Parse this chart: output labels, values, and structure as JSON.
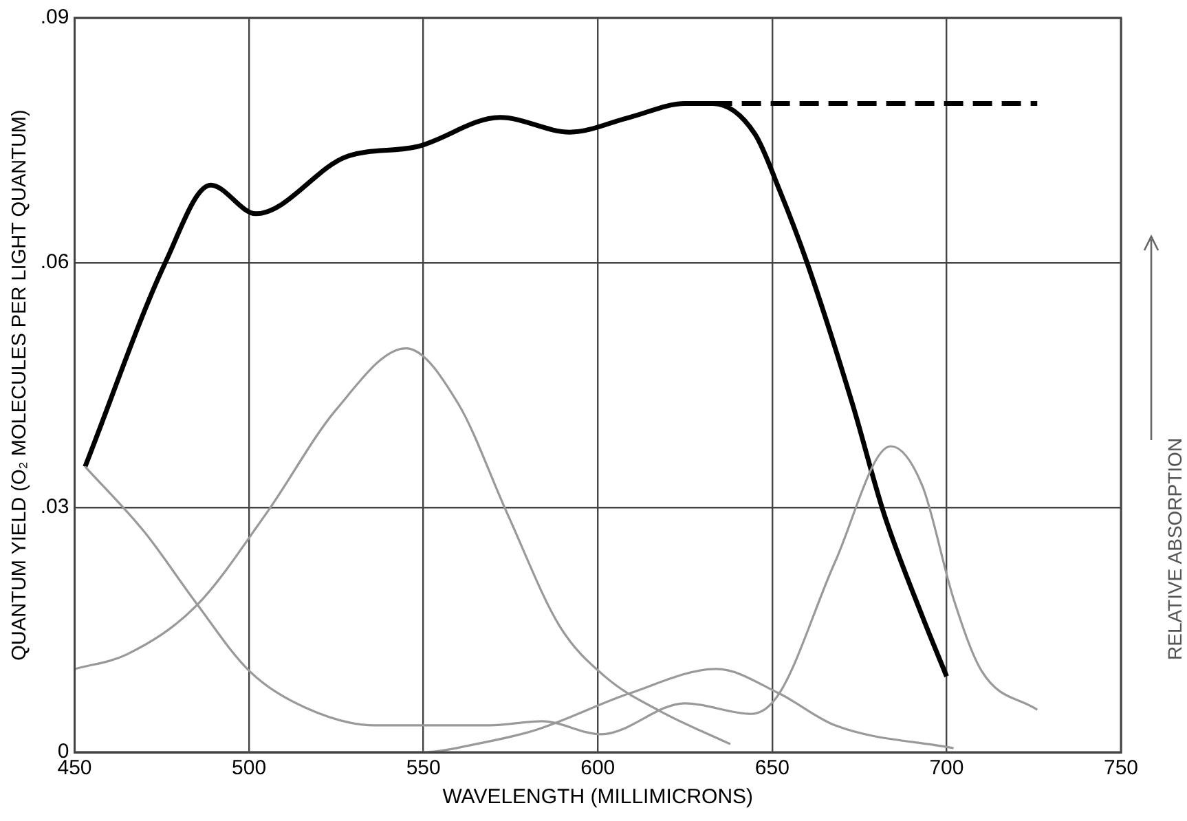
{
  "chart_data": {
    "type": "line",
    "xlabel": "WAVELENGTH (MILLIMICRONS)",
    "ylabel": "QUANTUM YIELD (O₂ MOLECULES PER LIGHT QUANTUM)",
    "y2label": "RELATIVE ABSORPTION",
    "xlim": [
      450,
      750
    ],
    "xticks": [
      450,
      500,
      550,
      600,
      650,
      700,
      750
    ],
    "ylim": [
      0,
      0.09
    ],
    "yticks": [
      {
        "value": 0,
        "label": "0"
      },
      {
        "value": 0.03,
        "label": ".03"
      },
      {
        "value": 0.06,
        "label": ".06"
      },
      {
        "value": 0.09,
        "label": ".09"
      }
    ],
    "grid": true,
    "legend": false,
    "marker": "none",
    "series": [
      {
        "color": "#999999",
        "x": [
          450,
          465,
          485,
          505,
          525,
          545,
          560,
          574,
          589,
          602,
          618,
          638
        ],
        "values": [
          0.0102,
          0.012,
          0.018,
          0.0293,
          0.042,
          0.0495,
          0.0427,
          0.0293,
          0.0155,
          0.0093,
          0.005,
          0.001
        ]
      },
      {
        "color": "#999999",
        "x": [
          453,
          470,
          485,
          500,
          516,
          536,
          569,
          584,
          601,
          625,
          644,
          652,
          668,
          684,
          693,
          702,
          710,
          726
        ],
        "values": [
          0.035,
          0.027,
          0.0182,
          0.01,
          0.0055,
          0.0033,
          0.0033,
          0.0038,
          0.0022,
          0.006,
          0.0047,
          0.0072,
          0.0233,
          0.0375,
          0.0327,
          0.0188,
          0.01,
          0.0052
        ]
      },
      {
        "color": "#999999",
        "x": [
          450,
          500,
          550,
          565,
          582,
          609,
          634,
          652,
          668,
          702
        ],
        "values": [
          0,
          0,
          0,
          0.001,
          0.0027,
          0.0072,
          0.0102,
          0.0072,
          0.0033,
          0.0005
        ]
      },
      {
        "color": "#000000",
        "line_style": "solid",
        "x": [
          453,
          476,
          489,
          502,
          528,
          548,
          572,
          592,
          609,
          625,
          633,
          645,
          652,
          660,
          673,
          682,
          693,
          700
        ],
        "values": [
          0.035,
          0.06,
          0.0695,
          0.066,
          0.073,
          0.0742,
          0.0778,
          0.076,
          0.0778,
          0.0795,
          0.0795,
          0.0758,
          0.069,
          0.06,
          0.0427,
          0.0293,
          0.0167,
          0.0093
        ]
      },
      {
        "color": "#000000",
        "line_style": "dashed",
        "x": [
          633,
          726
        ],
        "values": [
          0.0795,
          0.0795
        ]
      }
    ]
  }
}
